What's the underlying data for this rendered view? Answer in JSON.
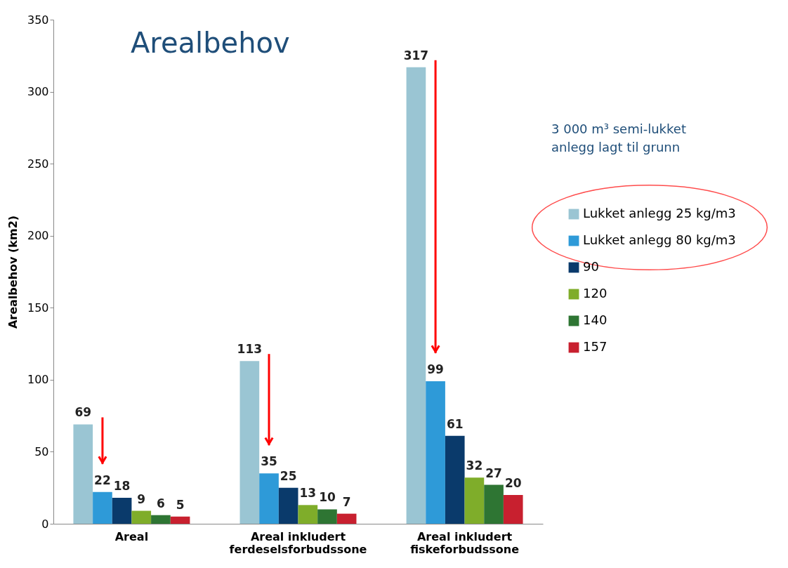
{
  "chart_data": {
    "type": "bar",
    "title": "Arealbehov",
    "ylabel": "Arealbehov (km2)",
    "categories": [
      "Areal",
      "Areal inkludert ferdeselsforbudssone",
      "Areal inkludert fiskeforbudssone"
    ],
    "series": [
      {
        "name": "Lukket anlegg 25 kg/m3",
        "color": "#9ac5d3",
        "values": [
          69,
          113,
          317
        ]
      },
      {
        "name": "Lukket anlegg 80 kg/m3",
        "color": "#2e9ad8",
        "values": [
          22,
          35,
          99
        ]
      },
      {
        "name": "90",
        "color": "#0a3a6b",
        "values": [
          18,
          25,
          61
        ]
      },
      {
        "name": "120",
        "color": "#7fad2a",
        "values": [
          9,
          13,
          32
        ]
      },
      {
        "name": "140",
        "color": "#2e7533",
        "values": [
          6,
          10,
          27
        ]
      },
      {
        "name": "157",
        "color": "#c8202f",
        "values": [
          5,
          7,
          20
        ]
      }
    ],
    "annotations": [
      "3 000 m³ semi-lukket anlegg lagt til grunn"
    ],
    "ylim": [
      0,
      350
    ],
    "yticks": [
      0,
      50,
      100,
      150,
      200,
      250,
      300,
      350
    ],
    "data_labels": true,
    "legend": "right",
    "grid": false
  }
}
